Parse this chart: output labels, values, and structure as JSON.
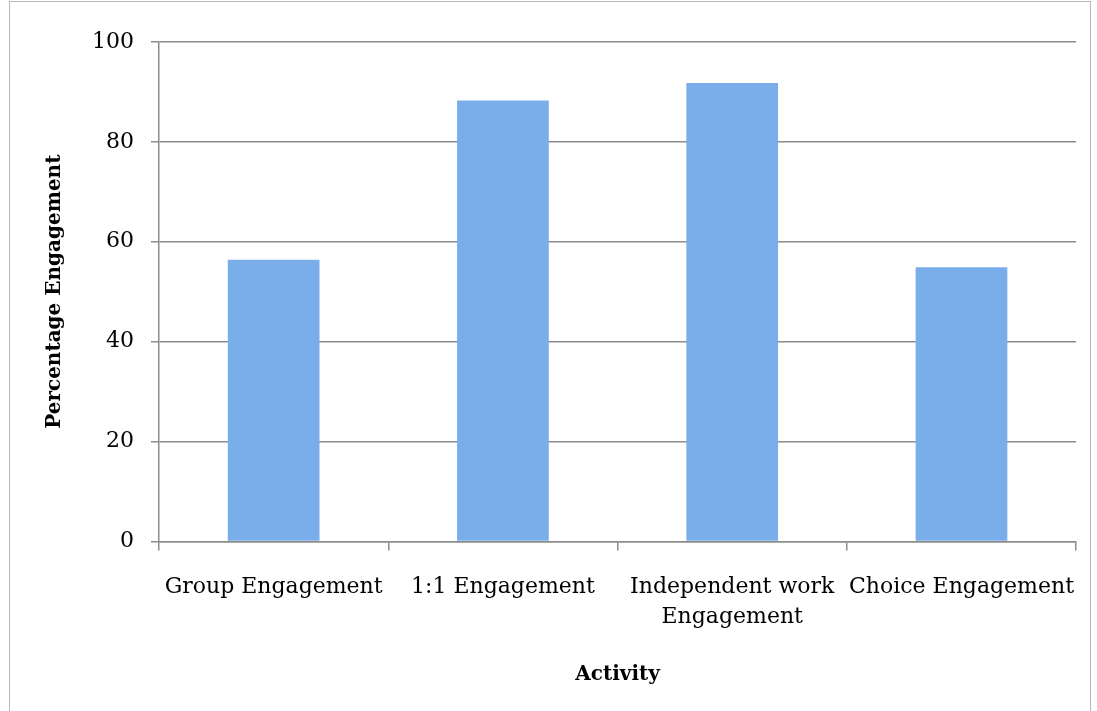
{
  "chart_data": {
    "type": "bar",
    "xlabel": "Activity",
    "ylabel": "Percentage Engagement",
    "categories": [
      "Group Engagement",
      "1:1 Engagement",
      "Independent work Engagement",
      "Choice Engagement"
    ],
    "values": [
      56.4,
      88.3,
      91.8,
      54.9
    ],
    "color": "#7aaeea",
    "ylim": [
      0,
      100
    ],
    "yticks": [
      0,
      20,
      40,
      60,
      80,
      100
    ],
    "grid": "y",
    "legend": false
  }
}
